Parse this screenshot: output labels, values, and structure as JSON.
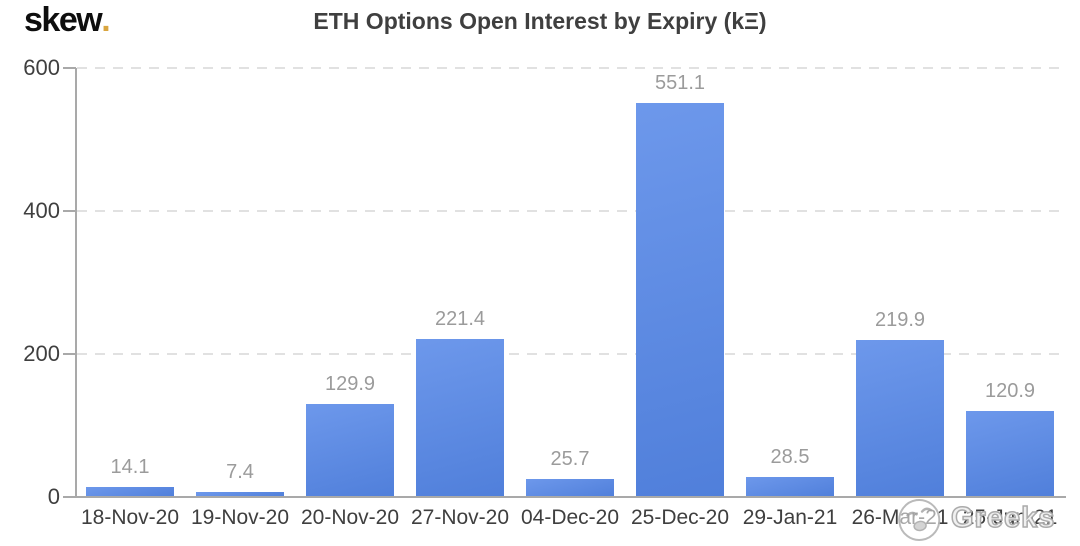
{
  "logo": {
    "text": "skew",
    "dot": "."
  },
  "title": "ETH Options Open Interest by Expiry (kΞ)",
  "watermark": {
    "text": "Greeks",
    "icon": "smiley-face-icon"
  },
  "chart_data": {
    "type": "bar",
    "title": "ETH Options Open Interest by Expiry (kΞ)",
    "categories": [
      "18-Nov-20",
      "19-Nov-20",
      "20-Nov-20",
      "27-Nov-20",
      "04-Dec-20",
      "25-Dec-20",
      "29-Jan-21",
      "26-Mar-21",
      "25-Jun-21"
    ],
    "values": [
      14.1,
      7.4,
      129.9,
      221.4,
      25.7,
      551.1,
      28.5,
      219.9,
      120.9
    ],
    "xlabel": "",
    "ylabel": "",
    "ylim": [
      0,
      600
    ],
    "yticks": [
      0,
      200,
      400,
      600
    ],
    "grid": "horizontal-dashed",
    "legend": "none",
    "value_labels": "above-bars",
    "colors": {
      "bar": "#5587e8",
      "value_label": "#9b9b9b",
      "axis_label": "#3f3f3f",
      "axis_line": "#a9a9a9",
      "gridline": "#e1e1e1",
      "title": "#3f3f3f",
      "logo_dot": "#d9a53f"
    }
  }
}
